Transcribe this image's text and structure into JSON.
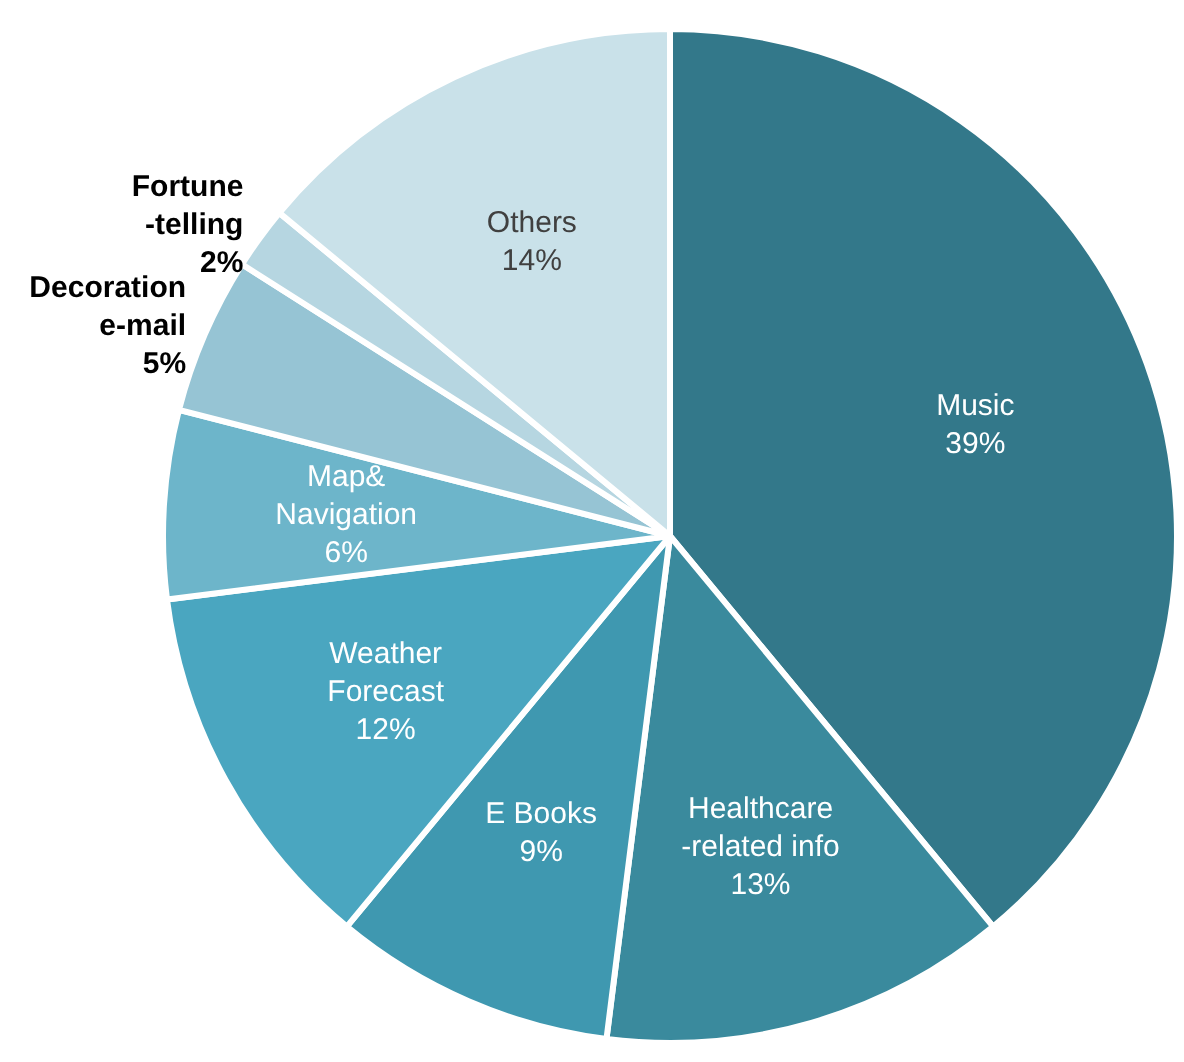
{
  "chart_data": {
    "type": "pie",
    "categories": [
      "Music",
      "Healthcare\n-related info",
      "E Books",
      "Weather\nForecast",
      "Map&\nNavigation",
      "Decoration\ne-mail",
      "Fortune\n-telling",
      "Others"
    ],
    "values": [
      39,
      13,
      9,
      12,
      6,
      5,
      2,
      14
    ],
    "colors": [
      "#33788a",
      "#3a8a9d",
      "#3f98b0",
      "#4aa6c0",
      "#6db5ca",
      "#96c4d4",
      "#b6d6e1",
      "#c9e1e9"
    ],
    "value_labels": [
      "39%",
      "13%",
      "9%",
      "12%",
      "6%",
      "5%",
      "2%",
      "14%"
    ],
    "legend": false
  }
}
